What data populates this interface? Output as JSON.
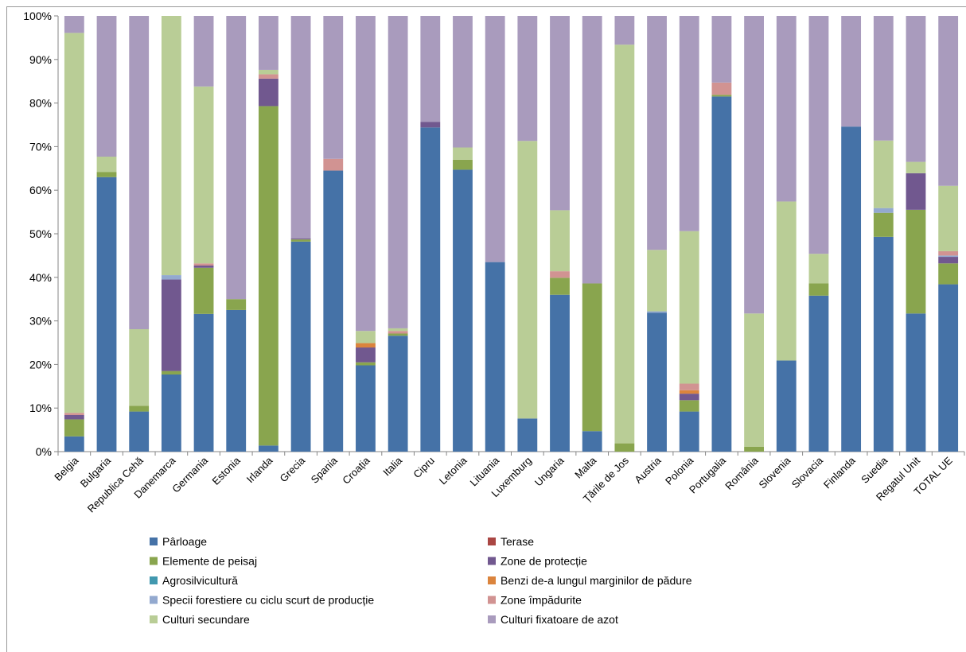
{
  "chart_data": {
    "type": "bar",
    "stacked": true,
    "percent": true,
    "title": "",
    "xlabel": "",
    "ylabel": "",
    "ylim": [
      0,
      100
    ],
    "yticks": [
      "0%",
      "10%",
      "20%",
      "30%",
      "40%",
      "50%",
      "60%",
      "70%",
      "80%",
      "90%",
      "100%"
    ],
    "grid": false,
    "legend": "bottom",
    "categories": [
      "Belgia",
      "Bulgaria",
      "Republica Cehă",
      "Danemarca",
      "Germania",
      "Estonia",
      "Irlanda",
      "Grecia",
      "Spania",
      "Croația",
      "Italia",
      "Cipru",
      "Letonia",
      "Lituania",
      "Luxemburg",
      "Ungaria",
      "Malta",
      "Țările de Jos",
      "Austria",
      "Polonia",
      "Portugalia",
      "România",
      "Slovenia",
      "Slovacia",
      "Finlanda",
      "Suedia",
      "Regatul Unit",
      "TOTAL UE"
    ],
    "series": [
      {
        "name": "Pârloage",
        "color": "#4572A7",
        "values": [
          3.5,
          63,
          9.2,
          17.7,
          31.6,
          32.5,
          1.4,
          48.2,
          64.5,
          19.8,
          26.6,
          74.4,
          64.7,
          43.5,
          7.6,
          36,
          4.7,
          0,
          31.9,
          9.2,
          81.5,
          0,
          20.9,
          35.8,
          74.6,
          49.3,
          31.7,
          38.4
        ]
      },
      {
        "name": "Terase",
        "color": "#AA4643",
        "values": [
          0,
          0,
          0,
          0,
          0,
          0,
          0,
          0,
          0,
          0,
          0,
          0,
          0,
          0,
          0,
          0,
          0,
          0,
          0,
          0,
          0,
          0,
          0,
          0,
          0,
          0,
          0,
          0
        ]
      },
      {
        "name": "Elemente de peisaj",
        "color": "#89A54E",
        "values": [
          3.9,
          1.2,
          1.3,
          0.8,
          10.6,
          2.5,
          77.9,
          0.5,
          0,
          0.7,
          0.5,
          0,
          2.3,
          0,
          0,
          3.9,
          33.9,
          1.9,
          0,
          2.6,
          0.4,
          1.1,
          0,
          2.8,
          0,
          5.5,
          23.8,
          4.8
        ]
      },
      {
        "name": "Zone de protecție",
        "color": "#71588F",
        "values": [
          1,
          0,
          0,
          21,
          0.5,
          0,
          6.3,
          0.2,
          0,
          3.4,
          0,
          1.3,
          0,
          0,
          0,
          0,
          0,
          0,
          0,
          1.5,
          0,
          0,
          0,
          0,
          0,
          0,
          8.4,
          1.5
        ]
      },
      {
        "name": "Agrosilvicultură",
        "color": "#4198AF",
        "values": [
          0,
          0,
          0,
          0,
          0,
          0,
          0,
          0,
          0,
          0,
          0,
          0,
          0,
          0,
          0,
          0,
          0,
          0,
          0,
          0,
          0,
          0,
          0,
          0,
          0,
          0,
          0,
          0
        ]
      },
      {
        "name": "Benzi de-a lungul marginilor de pădure",
        "color": "#DB843D",
        "values": [
          0,
          0,
          0,
          0,
          0,
          0,
          0,
          0,
          0,
          1,
          0,
          0,
          0,
          0,
          0,
          0,
          0,
          0,
          0,
          0.8,
          0,
          0,
          0,
          0,
          0,
          0,
          0,
          0
        ]
      },
      {
        "name": "Specii forestiere cu ciclu scurt de producție",
        "color": "#93A9CF",
        "values": [
          0,
          0,
          0,
          1,
          0,
          0,
          0,
          0,
          0,
          0,
          0,
          0,
          0,
          0,
          0,
          0,
          0,
          0,
          0.3,
          0,
          0,
          0,
          0,
          0,
          0,
          1.1,
          0,
          0.3
        ]
      },
      {
        "name": "Zone împădurite",
        "color": "#D19392",
        "values": [
          0.5,
          0,
          0,
          0,
          0.5,
          0,
          1,
          0,
          2.7,
          0,
          0.6,
          0,
          0,
          0,
          0,
          1.5,
          0,
          0,
          0,
          1.5,
          2.8,
          0,
          0,
          0,
          0,
          0,
          0,
          1
        ]
      },
      {
        "name": "Culturi secundare",
        "color": "#B9CD96",
        "values": [
          87.2,
          3.5,
          17.6,
          59.5,
          40.6,
          0,
          1,
          0,
          0,
          2.8,
          0.6,
          0,
          2.8,
          0,
          63.7,
          14,
          0,
          91.5,
          14.1,
          35,
          0,
          30.6,
          36.5,
          6.8,
          0,
          15.5,
          2.6,
          15
        ]
      },
      {
        "name": "Culturi fixatoare de azot",
        "color": "#A99BBD",
        "values": [
          3.9,
          32.3,
          71.9,
          0,
          16.2,
          65,
          12.4,
          51.1,
          32.8,
          72.3,
          71.7,
          24.3,
          30.2,
          56.5,
          28.7,
          44.6,
          61.4,
          6.6,
          53.7,
          49.4,
          15.3,
          68.3,
          42.6,
          54.6,
          25.4,
          28.6,
          33.5,
          39
        ]
      }
    ]
  }
}
